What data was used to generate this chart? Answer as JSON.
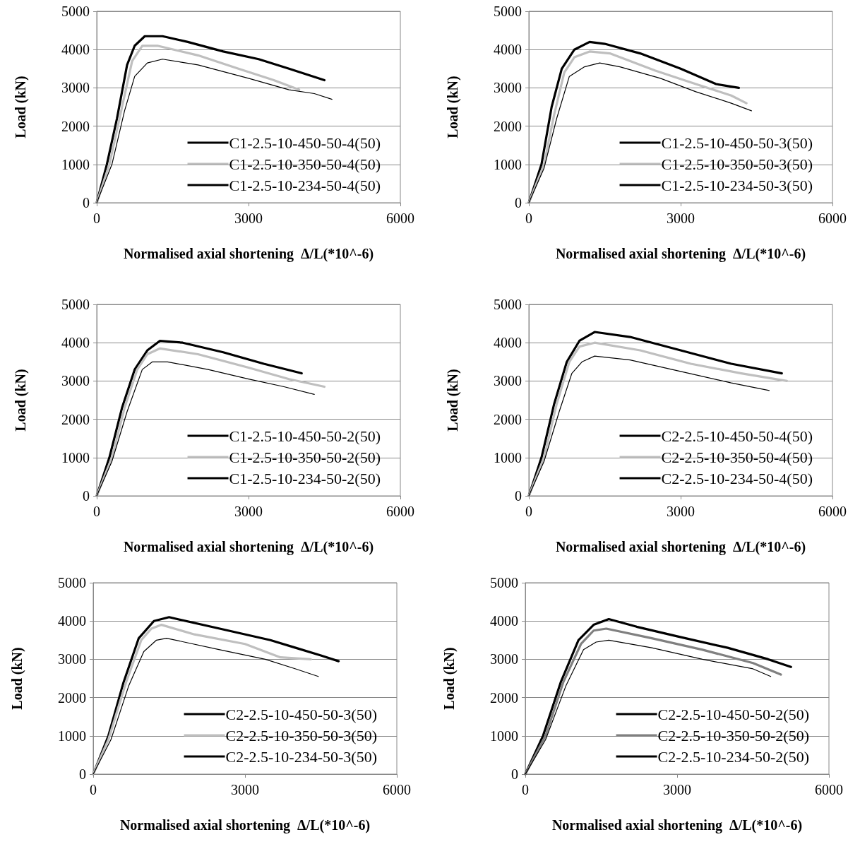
{
  "chart_data": [
    {
      "type": "line",
      "xlabel": "Normalised axial shortening  Δ/L(*10^-6)",
      "ylabel": "Load (kN)",
      "xlim": [
        0,
        6000
      ],
      "xticks": [
        0,
        3000,
        6000
      ],
      "ylim": [
        0,
        5000
      ],
      "yticks": [
        0,
        1000,
        2000,
        3000,
        4000,
        5000
      ],
      "grid": "y",
      "legend": "bottom right",
      "marker": "none",
      "line_style": "solid",
      "series": [
        {
          "name": "C1-2.5-10-450-50-4(50)",
          "color": "#000000",
          "x": [
            0,
            200,
            400,
            600,
            750,
            950,
            1300,
            1800,
            2500,
            3200,
            3800,
            4500
          ],
          "values": [
            0,
            1000,
            2200,
            3600,
            4100,
            4350,
            4350,
            4200,
            3950,
            3750,
            3500,
            3200
          ]
        },
        {
          "name": "C1-2.5-10-350-50-4(50)",
          "color": "#bfbfbf",
          "x": [
            0,
            250,
            500,
            700,
            900,
            1200,
            2000,
            2800,
            3500,
            4000
          ],
          "values": [
            0,
            1000,
            2500,
            3700,
            4100,
            4100,
            3850,
            3500,
            3200,
            2950
          ]
        },
        {
          "name": "C1-2.5-10-234-50-4(50)",
          "color": "#000000",
          "x": [
            0,
            300,
            550,
            750,
            1000,
            1300,
            2000,
            3000,
            3800,
            4300,
            4650
          ],
          "values": [
            0,
            1000,
            2400,
            3300,
            3650,
            3750,
            3600,
            3250,
            2950,
            2850,
            2700
          ]
        }
      ]
    },
    {
      "type": "line",
      "xlabel": "Normalised axial shortening  Δ/L(*10^-6)",
      "ylabel": "Load (kN)",
      "xlim": [
        0,
        6000
      ],
      "xticks": [
        0,
        3000,
        6000
      ],
      "ylim": [
        0,
        5000
      ],
      "yticks": [
        0,
        1000,
        2000,
        3000,
        4000,
        5000
      ],
      "grid": "y",
      "legend": "bottom right",
      "marker": "none",
      "line_style": "solid",
      "series": [
        {
          "name": "C1-2.5-10-450-50-3(50)",
          "color": "#000000",
          "x": [
            0,
            250,
            450,
            650,
            900,
            1200,
            1500,
            2200,
            3000,
            3700,
            4150
          ],
          "values": [
            0,
            1000,
            2500,
            3500,
            4000,
            4200,
            4150,
            3900,
            3500,
            3100,
            3000
          ]
        },
        {
          "name": "C1-2.5-10-350-50-3(50)",
          "color": "#bfbfbf",
          "x": [
            0,
            300,
            500,
            700,
            900,
            1200,
            1600,
            2500,
            3300,
            4000,
            4300
          ],
          "values": [
            0,
            1000,
            2300,
            3400,
            3800,
            3950,
            3900,
            3450,
            3100,
            2800,
            2600
          ]
        },
        {
          "name": "C1-2.5-10-234-50-3(50)",
          "color": "#000000",
          "x": [
            0,
            300,
            550,
            800,
            1100,
            1400,
            1800,
            2600,
            3300,
            4000,
            4400
          ],
          "values": [
            0,
            900,
            2200,
            3300,
            3550,
            3650,
            3550,
            3250,
            2900,
            2600,
            2400
          ]
        }
      ]
    },
    {
      "type": "line",
      "xlabel": "Normalised axial shortening  Δ/L(*10^-6)",
      "ylabel": "Load (kN)",
      "xlim": [
        0,
        6000
      ],
      "xticks": [
        0,
        3000,
        6000
      ],
      "ylim": [
        0,
        5000
      ],
      "yticks": [
        0,
        1000,
        2000,
        3000,
        4000,
        5000
      ],
      "grid": "y",
      "legend": "bottom right",
      "marker": "none",
      "line_style": "solid",
      "series": [
        {
          "name": "C1-2.5-10-450-50-2(50)",
          "color": "#000000",
          "x": [
            0,
            250,
            500,
            750,
            1000,
            1250,
            1700,
            2500,
            3300,
            4050
          ],
          "values": [
            0,
            1000,
            2300,
            3300,
            3800,
            4050,
            4000,
            3750,
            3450,
            3200
          ]
        },
        {
          "name": "C1-2.5-10-350-50-2(50)",
          "color": "#bfbfbf",
          "x": [
            0,
            300,
            550,
            800,
            1000,
            1250,
            2000,
            3000,
            3800,
            4500
          ],
          "values": [
            0,
            1000,
            2300,
            3300,
            3700,
            3850,
            3700,
            3350,
            3050,
            2850
          ]
        },
        {
          "name": "C1-2.5-10-234-50-2(50)",
          "color": "#000000",
          "x": [
            0,
            300,
            600,
            900,
            1100,
            1400,
            2200,
            3000,
            3700,
            4300
          ],
          "values": [
            0,
            900,
            2200,
            3300,
            3500,
            3500,
            3300,
            3050,
            2850,
            2650
          ]
        }
      ]
    },
    {
      "type": "line",
      "xlabel": "Normalised axial shortening  Δ/L(*10^-6)",
      "ylabel": "Load (kN)",
      "xlim": [
        0,
        6000
      ],
      "xticks": [
        0,
        3000,
        6000
      ],
      "ylim": [
        0,
        5000
      ],
      "yticks": [
        0,
        1000,
        2000,
        3000,
        4000,
        5000
      ],
      "grid": "y",
      "legend": "bottom right",
      "marker": "none",
      "line_style": "solid",
      "series": [
        {
          "name": "C2-2.5-10-450-50-4(50)",
          "color": "#000000",
          "x": [
            0,
            250,
            500,
            750,
            1000,
            1300,
            2000,
            3000,
            4000,
            5000
          ],
          "values": [
            0,
            1000,
            2400,
            3500,
            4050,
            4280,
            4150,
            3800,
            3450,
            3200
          ]
        },
        {
          "name": "C2-2.5-10-350-50-4(50)",
          "color": "#bfbfbf",
          "x": [
            0,
            300,
            550,
            800,
            1000,
            1300,
            2200,
            3200,
            4200,
            5100
          ],
          "values": [
            0,
            1000,
            2400,
            3500,
            3900,
            4000,
            3800,
            3450,
            3200,
            3000
          ]
        },
        {
          "name": "C2-2.5-10-234-50-4(50)",
          "color": "#000000",
          "x": [
            0,
            300,
            600,
            850,
            1050,
            1300,
            2000,
            3000,
            4000,
            4750
          ],
          "values": [
            0,
            900,
            2200,
            3200,
            3500,
            3650,
            3550,
            3250,
            2950,
            2750
          ]
        }
      ]
    },
    {
      "type": "line",
      "xlabel": "Normalised axial shortening  Δ/L(*10^-6)",
      "ylabel": "Load (kN)",
      "xlim": [
        0,
        6000
      ],
      "xticks": [
        0,
        3000,
        6000
      ],
      "ylim": [
        0,
        5000
      ],
      "yticks": [
        0,
        1000,
        2000,
        3000,
        4000,
        5000
      ],
      "grid": "y",
      "legend": "bottom right",
      "marker": "none",
      "line_style": "solid",
      "series": [
        {
          "name": "C2-2.5-10-450-50-3(50)",
          "color": "#000000",
          "x": [
            0,
            300,
            600,
            900,
            1200,
            1500,
            2500,
            3500,
            4000,
            4500,
            4850
          ],
          "values": [
            0,
            1000,
            2400,
            3550,
            4000,
            4100,
            3800,
            3500,
            3300,
            3100,
            2950
          ]
        },
        {
          "name": "C2-2.5-10-350-50-3(50)",
          "color": "#bfbfbf",
          "x": [
            0,
            300,
            650,
            950,
            1150,
            1350,
            2000,
            3000,
            3700,
            4300
          ],
          "values": [
            0,
            900,
            2400,
            3500,
            3800,
            3900,
            3650,
            3400,
            3050,
            3000
          ]
        },
        {
          "name": "C2-2.5-10-234-50-3(50)",
          "color": "#000000",
          "x": [
            0,
            350,
            700,
            1000,
            1250,
            1450,
            2500,
            3400,
            4000,
            4450
          ],
          "values": [
            0,
            900,
            2300,
            3200,
            3500,
            3550,
            3250,
            3000,
            2750,
            2550
          ]
        }
      ]
    },
    {
      "type": "line",
      "xlabel": "Normalised axial shortening  Δ/L(*10^-6)",
      "ylabel": "Load (kN)",
      "xlim": [
        0,
        6000
      ],
      "xticks": [
        0,
        3000,
        6000
      ],
      "ylim": [
        0,
        5000
      ],
      "yticks": [
        0,
        1000,
        2000,
        3000,
        4000,
        5000
      ],
      "grid": "y",
      "legend": "bottom right",
      "marker": "none",
      "line_style": "solid",
      "series": [
        {
          "name": "C2-2.5-10-450-50-2(50)",
          "color": "#000000",
          "x": [
            0,
            350,
            700,
            1050,
            1350,
            1650,
            2200,
            3000,
            4000,
            4800,
            5250
          ],
          "values": [
            0,
            1000,
            2400,
            3500,
            3900,
            4050,
            3850,
            3600,
            3300,
            3000,
            2800
          ]
        },
        {
          "name": "C2-2.5-10-350-50-2(50)",
          "color": "#808080",
          "x": [
            0,
            400,
            750,
            1100,
            1350,
            1600,
            2500,
            3500,
            4500,
            5050
          ],
          "values": [
            0,
            1000,
            2400,
            3400,
            3750,
            3800,
            3550,
            3250,
            2900,
            2600
          ]
        },
        {
          "name": "C2-2.5-10-234-50-2(50)",
          "color": "#000000",
          "x": [
            0,
            400,
            800,
            1150,
            1400,
            1650,
            2500,
            3500,
            4500,
            4850
          ],
          "values": [
            0,
            900,
            2300,
            3250,
            3450,
            3500,
            3300,
            3000,
            2750,
            2550
          ]
        }
      ]
    }
  ]
}
